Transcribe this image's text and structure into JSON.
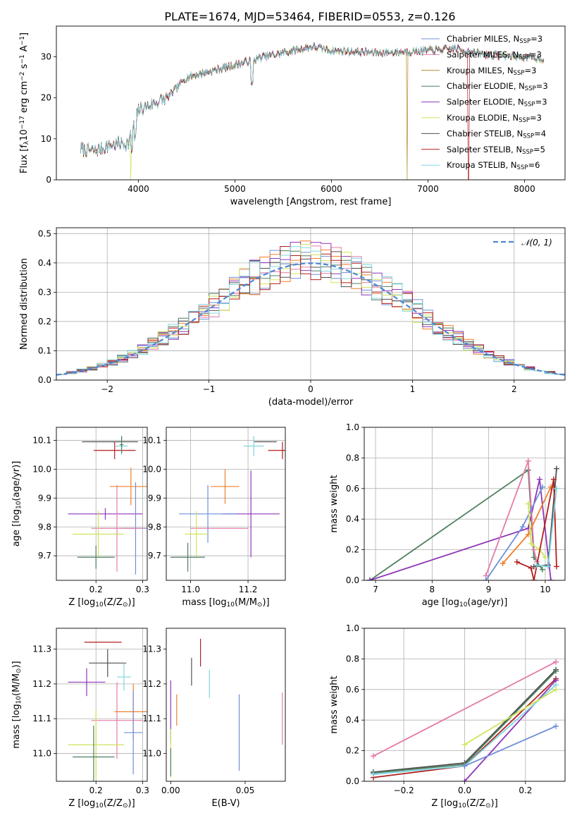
{
  "figure_title": "PLATE=1674, MJD=53464, FIBERID=0553, z=0.126",
  "colors": {
    "chabrier_miles": "#6f8fd8",
    "salpeter_miles": "#e57aa8",
    "kroupa_miles": "#b5892f",
    "chabrier_elodie": "#4f7f5f",
    "salpeter_elodie": "#8f35b8",
    "kroupa_elodie": "#cfe35a",
    "chabrier_stelib": "#505050",
    "salpeter_stelib": "#b21e1e",
    "kroupa_stelib": "#7fd6e0",
    "orange": "#f07f2a",
    "normal": "#4f86d6",
    "grid": "#b0b0b0"
  },
  "chart_data": [
    {
      "id": "spectrum",
      "type": "line",
      "title": "PLATE=1674, MJD=53464, FIBERID=0553, z=0.126",
      "xlabel": "wavelength [Angstrom, rest frame]",
      "ylabel_parts": [
        "Flux [f",
        "λ",
        "10",
        "−17",
        " erg cm",
        "−2",
        " s",
        "−1",
        " A",
        "−1",
        "]"
      ],
      "xlim": [
        3150,
        8420
      ],
      "ylim": [
        0,
        37.5
      ],
      "xticks": [
        "4000",
        "5000",
        "6000",
        "7000",
        "8000"
      ],
      "yticks": [
        "0",
        "10",
        "20",
        "30"
      ],
      "grid": false,
      "legend_position": "top-right",
      "continuum": [
        [
          3400,
          7.5
        ],
        [
          3550,
          7.0
        ],
        [
          3700,
          8.5
        ],
        [
          3900,
          9.0
        ],
        [
          4000,
          17.0
        ],
        [
          4300,
          20.0
        ],
        [
          4500,
          25.0
        ],
        [
          5000,
          28.0
        ],
        [
          5300,
          30.0
        ],
        [
          5800,
          32.5
        ],
        [
          6000,
          31.5
        ],
        [
          6500,
          31.0
        ],
        [
          7000,
          31.5
        ],
        [
          7300,
          32.0
        ],
        [
          7600,
          30.5
        ],
        [
          8000,
          30.0
        ],
        [
          8200,
          29.5
        ]
      ],
      "series": [
        {
          "name": "Chabrier MILES, N",
          "sub": "SSP",
          "eq": "=3",
          "color_key": "chabrier_miles",
          "drop": null
        },
        {
          "name": "Salpeter MILES, N",
          "sub": "SSP",
          "eq": "=3",
          "color_key": "salpeter_miles",
          "drop": null
        },
        {
          "name": "Kroupa MILES, N",
          "sub": "SSP",
          "eq": "=3",
          "color_key": "kroupa_miles",
          "drop": 6785
        },
        {
          "name": "Chabrier ELODIE, N",
          "sub": "SSP",
          "eq": "=3",
          "color_key": "chabrier_elodie",
          "drop": null
        },
        {
          "name": "Salpeter ELODIE, N",
          "sub": "SSP",
          "eq": "=3",
          "color_key": "salpeter_elodie",
          "drop": null
        },
        {
          "name": "Kroupa ELODIE, N",
          "sub": "SSP",
          "eq": "=3",
          "color_key": "kroupa_elodie",
          "drop": 3920
        },
        {
          "name": "Chabrier STELIB, N",
          "sub": "SSP",
          "eq": "=4",
          "color_key": "chabrier_stelib",
          "drop": null
        },
        {
          "name": "Salpeter STELIB, N",
          "sub": "SSP",
          "eq": "=5",
          "color_key": "salpeter_stelib",
          "drop": 7420
        },
        {
          "name": "Kroupa STELIB, N",
          "sub": "SSP",
          "eq": "=6",
          "color_key": "kroupa_stelib",
          "drop": null
        }
      ]
    },
    {
      "id": "residuals",
      "type": "histogram",
      "xlabel": "(data-model)/error",
      "ylabel": "Normed distribution",
      "xlim": [
        -2.5,
        2.5
      ],
      "ylim": [
        0,
        0.52
      ],
      "xticks": [
        "−2",
        "−1",
        "0",
        "1",
        "2"
      ],
      "yticks": [
        "0.0",
        "0.1",
        "0.2",
        "0.3",
        "0.4",
        "0.5"
      ],
      "grid": true,
      "legend_position": "top-right",
      "legend_label": "𝒩(0, 1)",
      "bin_width": 0.1,
      "series_color_keys": [
        "chabrier_miles",
        "salpeter_miles",
        "orange",
        "chabrier_elodie",
        "salpeter_elodie",
        "kroupa_elodie",
        "chabrier_stelib",
        "salpeter_stelib",
        "kroupa_stelib"
      ]
    },
    {
      "id": "age_vs_Z",
      "type": "errorbar",
      "xlabel_parts": [
        "Z [log",
        "10",
        "(Z/Z",
        "⊙",
        ")]"
      ],
      "ylabel_parts": [
        "age  [log",
        "10",
        "(age/yr)]"
      ],
      "xlim": [
        0.115,
        0.31
      ],
      "ylim": [
        9.615,
        10.145
      ],
      "xticks": [
        "0.2",
        "0.3"
      ],
      "yticks": [
        "9.7",
        "9.8",
        "9.9",
        "10.0",
        "10.1"
      ],
      "grid": true,
      "points": [
        {
          "color_key": "chabrier_stelib",
          "x": 0.23,
          "xerr": 0.06,
          "y": 10.095,
          "yerr": 0.0
        },
        {
          "color_key": "salpeter_stelib",
          "x": 0.24,
          "xerr": 0.045,
          "y": 10.065,
          "yerr": 0.03
        },
        {
          "color_key": "kroupa_stelib",
          "x": 0.255,
          "xerr": 0.013,
          "y": 10.08,
          "yerr": 0.03
        },
        {
          "color_key": "chabrier_elodie",
          "x": 0.255,
          "xerr": 0.004,
          "y": 10.085,
          "yerr": 0.03
        },
        {
          "color_key": "orange",
          "x": 0.275,
          "xerr": 0.045,
          "y": 9.94,
          "yerr": 0.065
        },
        {
          "color_key": "salpeter_elodie",
          "x": 0.22,
          "xerr": 0.08,
          "y": 9.845,
          "yerr": 0.02
        },
        {
          "color_key": "chabrier_miles",
          "x": 0.285,
          "xerr": 0.03,
          "y": 9.795,
          "yerr": 0.16
        },
        {
          "color_key": "salpeter_miles",
          "x": 0.245,
          "xerr": 0.055,
          "y": 9.795,
          "yerr": 0.15
        },
        {
          "color_key": "kroupa_elodie",
          "x": 0.205,
          "xerr": 0.055,
          "y": 9.775,
          "yerr": 0.08
        },
        {
          "color_key": "chabrier_elodie",
          "x": 0.2,
          "xerr": 0.04,
          "y": 9.695,
          "yerr": 0.04
        }
      ]
    },
    {
      "id": "age_vs_mass",
      "type": "errorbar",
      "xlabel_parts": [
        "mass [log",
        "10",
        "(M/M",
        "⊙",
        ")]"
      ],
      "xlim": [
        10.915,
        11.33
      ],
      "ylim": [
        9.615,
        10.145
      ],
      "xticks": [
        "11.0",
        "11.2"
      ],
      "yticks": [
        "9.7",
        "9.8",
        "9.9",
        "10.0",
        "10.1"
      ],
      "grid": true,
      "points": [
        {
          "color_key": "chabrier_stelib",
          "x": 11.26,
          "xerr": 0.04,
          "y": 10.095,
          "yerr": 0.0
        },
        {
          "color_key": "kroupa_stelib",
          "x": 11.22,
          "xerr": 0.035,
          "y": 10.08,
          "yerr": 0.035
        },
        {
          "color_key": "salpeter_stelib",
          "x": 11.32,
          "xerr": 0.05,
          "y": 10.065,
          "yerr": 0.03
        },
        {
          "color_key": "orange",
          "x": 11.12,
          "xerr": 0.05,
          "y": 9.94,
          "yerr": 0.06
        },
        {
          "color_key": "salpeter_elodie",
          "x": 11.21,
          "xerr": 0.1,
          "y": 9.845,
          "yerr": 0.15
        },
        {
          "color_key": "chabrier_miles",
          "x": 11.06,
          "xerr": 0.1,
          "y": 9.845,
          "yerr": 0.1
        },
        {
          "color_key": "salpeter_miles",
          "x": 11.1,
          "xerr": 0.1,
          "y": 9.795,
          "yerr": 0.0
        },
        {
          "color_key": "kroupa_elodie",
          "x": 11.02,
          "xerr": 0.04,
          "y": 9.775,
          "yerr": 0.08
        },
        {
          "color_key": "chabrier_elodie",
          "x": 10.99,
          "xerr": 0.06,
          "y": 9.695,
          "yerr": 0.05
        }
      ]
    },
    {
      "id": "weight_vs_age",
      "type": "line",
      "xlabel_parts": [
        "age  [log",
        "10",
        "(age/yr)]"
      ],
      "ylabel": "mass weight",
      "xlim": [
        6.8,
        10.35
      ],
      "ylim": [
        0,
        1
      ],
      "xticks": [
        "7",
        "8",
        "9",
        "10"
      ],
      "yticks": [
        "0.0",
        "0.2",
        "0.4",
        "0.6",
        "0.8",
        "1.0"
      ],
      "grid": true,
      "series": [
        {
          "color_key": "chabrier_elodie",
          "x": [
            6.9,
            9.7,
            9.8,
            9.95
          ],
          "y": [
            0.0,
            0.72,
            0.15,
            0.07
          ]
        },
        {
          "color_key": "salpeter_elodie",
          "x": [
            6.9,
            9.7,
            9.9,
            10.1
          ],
          "y": [
            0.0,
            0.34,
            0.66,
            0.0
          ]
        },
        {
          "color_key": "salpeter_miles",
          "x": [
            8.95,
            9.7,
            9.8,
            9.85
          ],
          "y": [
            0.03,
            0.78,
            0.2,
            0.12
          ]
        },
        {
          "color_key": "chabrier_miles",
          "x": [
            8.95,
            9.6,
            9.95
          ],
          "y": [
            0.0,
            0.35,
            0.61
          ]
        },
        {
          "color_key": "orange",
          "x": [
            9.25,
            9.7,
            10.1
          ],
          "y": [
            0.11,
            0.3,
            0.61
          ]
        },
        {
          "color_key": "kroupa_elodie",
          "x": [
            9.7,
            9.75,
            9.9,
            10.0
          ],
          "y": [
            0.5,
            0.24,
            0.2,
            0.15
          ]
        },
        {
          "color_key": "chabrier_stelib",
          "x": [
            9.8,
            10.05,
            10.2
          ],
          "y": [
            0.09,
            0.1,
            0.73
          ]
        },
        {
          "color_key": "salpeter_stelib",
          "x": [
            9.5,
            9.75,
            9.8,
            10.15,
            10.2
          ],
          "y": [
            0.12,
            0.08,
            0.0,
            0.66,
            0.09
          ]
        },
        {
          "color_key": "kroupa_stelib",
          "x": [
            9.85,
            10.05,
            10.2
          ],
          "y": [
            0.1,
            0.09,
            0.6
          ]
        }
      ]
    },
    {
      "id": "mass_vs_Z",
      "type": "errorbar",
      "xlabel_parts": [
        "Z [log",
        "10",
        "(Z/Z",
        "⊙",
        ")]"
      ],
      "ylabel_parts": [
        "mass [log",
        "10",
        "(M/M",
        "⊙",
        ")]"
      ],
      "xlim": [
        0.115,
        0.31
      ],
      "ylim": [
        10.92,
        11.36
      ],
      "xticks": [
        "0.2",
        "0.3"
      ],
      "yticks": [
        "11.0",
        "11.1",
        "11.2",
        "11.3"
      ],
      "grid": true,
      "points": [
        {
          "color_key": "salpeter_stelib",
          "x": 0.215,
          "xerr": 0.04,
          "y": 11.32,
          "yerr": 0.0
        },
        {
          "color_key": "chabrier_stelib",
          "x": 0.225,
          "xerr": 0.04,
          "y": 11.26,
          "yerr": 0.04
        },
        {
          "color_key": "kroupa_stelib",
          "x": 0.26,
          "xerr": 0.015,
          "y": 11.22,
          "yerr": 0.04
        },
        {
          "color_key": "salpeter_elodie",
          "x": 0.18,
          "xerr": 0.04,
          "y": 11.205,
          "yerr": 0.04
        },
        {
          "color_key": "orange",
          "x": 0.28,
          "xerr": 0.04,
          "y": 11.12,
          "yerr": 0.08
        },
        {
          "color_key": "salpeter_miles",
          "x": 0.245,
          "xerr": 0.055,
          "y": 11.095,
          "yerr": 0.11
        },
        {
          "color_key": "chabrier_miles",
          "x": 0.28,
          "xerr": 0.02,
          "y": 11.06,
          "yerr": 0.12
        },
        {
          "color_key": "kroupa_elodie",
          "x": 0.2,
          "xerr": 0.06,
          "y": 11.025,
          "yerr": 0.1
        },
        {
          "color_key": "chabrier_elodie",
          "x": 0.195,
          "xerr": 0.045,
          "y": 10.99,
          "yerr": 0.09
        }
      ]
    },
    {
      "id": "mass_vs_ebv",
      "type": "errorbar",
      "xlabel": "E(B-V)",
      "xlim": [
        -0.003,
        0.077
      ],
      "ylim": [
        10.92,
        11.36
      ],
      "xticks": [
        "0.00",
        "0.05"
      ],
      "yticks": [
        "11.0",
        "11.1",
        "11.2",
        "11.3"
      ],
      "grid": false,
      "points": [
        {
          "color_key": "salpeter_stelib",
          "x": 0.02,
          "xerr": 0.0,
          "y": 11.29,
          "yerr": 0.04
        },
        {
          "color_key": "chabrier_stelib",
          "x": 0.014,
          "xerr": 0.0,
          "y": 11.235,
          "yerr": 0.04
        },
        {
          "color_key": "kroupa_stelib",
          "x": 0.026,
          "xerr": 0.0,
          "y": 11.2,
          "yerr": 0.04
        },
        {
          "color_key": "salpeter_elodie",
          "x": 0.0,
          "xerr": 0.0,
          "y": 11.12,
          "yerr": 0.09
        },
        {
          "color_key": "orange",
          "x": 0.004,
          "xerr": 0.0,
          "y": 11.125,
          "yerr": 0.045
        },
        {
          "color_key": "salpeter_miles",
          "x": 0.075,
          "xerr": 0.0,
          "y": 11.1,
          "yerr": 0.075
        },
        {
          "color_key": "chabrier_miles",
          "x": 0.046,
          "xerr": 0.0,
          "y": 11.06,
          "yerr": 0.11
        },
        {
          "color_key": "kroupa_elodie",
          "x": 0.0,
          "xerr": 0.0,
          "y": 11.0,
          "yerr": 0.07
        },
        {
          "color_key": "chabrier_elodie",
          "x": 0.0,
          "xerr": 0.0,
          "y": 10.975,
          "yerr": 0.04
        }
      ]
    },
    {
      "id": "weight_vs_Z",
      "type": "line",
      "xlabel_parts": [
        "Z [log",
        "10",
        "(Z/Z",
        "⊙",
        ")]"
      ],
      "ylabel": "mass weight",
      "xlim": [
        -0.33,
        0.33
      ],
      "ylim": [
        0,
        1
      ],
      "xticks": [
        "−0.2",
        "0.0",
        "0.2"
      ],
      "yticks": [
        "0.0",
        "0.2",
        "0.4",
        "0.6",
        "0.8",
        "1.0"
      ],
      "grid": true,
      "series": [
        {
          "color_key": "salpeter_miles",
          "x": [
            -0.3,
            0.3
          ],
          "y": [
            0.165,
            0.78
          ]
        },
        {
          "color_key": "chabrier_stelib",
          "x": [
            -0.3,
            0.0,
            0.3
          ],
          "y": [
            0.06,
            0.12,
            0.73
          ]
        },
        {
          "color_key": "chabrier_elodie",
          "x": [
            -0.3,
            0.0,
            0.3
          ],
          "y": [
            0.055,
            0.11,
            0.72
          ]
        },
        {
          "color_key": "salpeter_stelib",
          "x": [
            -0.3,
            0.0,
            0.3
          ],
          "y": [
            0.025,
            0.1,
            0.67
          ]
        },
        {
          "color_key": "salpeter_elodie",
          "x": [
            0.0,
            0.3
          ],
          "y": [
            0.0,
            0.66
          ]
        },
        {
          "color_key": "kroupa_stelib",
          "x": [
            -0.3,
            0.0,
            0.3
          ],
          "y": [
            0.045,
            0.1,
            0.63
          ]
        },
        {
          "color_key": "kroupa_elodie",
          "x": [
            0.0,
            0.3
          ],
          "y": [
            0.24,
            0.6
          ]
        },
        {
          "color_key": "chabrier_miles",
          "x": [
            0.0,
            0.3
          ],
          "y": [
            0.1,
            0.36
          ]
        }
      ]
    }
  ]
}
